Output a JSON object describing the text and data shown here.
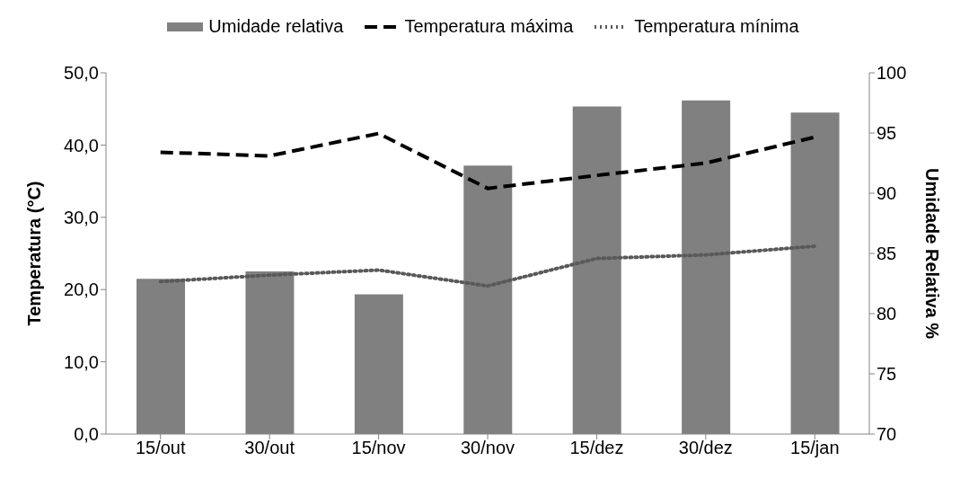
{
  "chart_data": {
    "type": "bar",
    "categories": [
      "15/out",
      "30/out",
      "15/nov",
      "30/nov",
      "15/dez",
      "30/dez",
      "15/jan"
    ],
    "ylabel": "Temperatura (°C)",
    "y2label": "Umidade Relativa %",
    "ylim": [
      0,
      50
    ],
    "yticks": [
      {
        "value": 0,
        "label": "0,0"
      },
      {
        "value": 10,
        "label": "10,0"
      },
      {
        "value": 20,
        "label": "20,0"
      },
      {
        "value": 30,
        "label": "30,0"
      },
      {
        "value": 40,
        "label": "40,0"
      },
      {
        "value": 50,
        "label": "50,0"
      }
    ],
    "y2lim": [
      70,
      100
    ],
    "y2ticks": [
      70,
      75,
      80,
      85,
      90,
      95,
      100
    ],
    "grid": false,
    "legend": "top",
    "series": [
      {
        "name": "Umidade relativa",
        "axis": "y2",
        "color": "#808080",
        "values": [
          82.9,
          83.5,
          81.6,
          92.3,
          97.2,
          97.7,
          96.7
        ]
      },
      {
        "name": "Temperatura máxima",
        "type": "line",
        "color": "#000000",
        "line_style": "dashed",
        "marker": "none",
        "values": [
          39.0,
          38.5,
          41.6,
          34.0,
          35.8,
          37.5,
          41.1
        ]
      },
      {
        "name": "Temperatura mínima",
        "type": "line",
        "color": "#595959",
        "line_style": "dotted",
        "marker": "none",
        "values": [
          21.1,
          22.0,
          22.7,
          20.5,
          24.3,
          24.8,
          26.0
        ]
      }
    ]
  }
}
